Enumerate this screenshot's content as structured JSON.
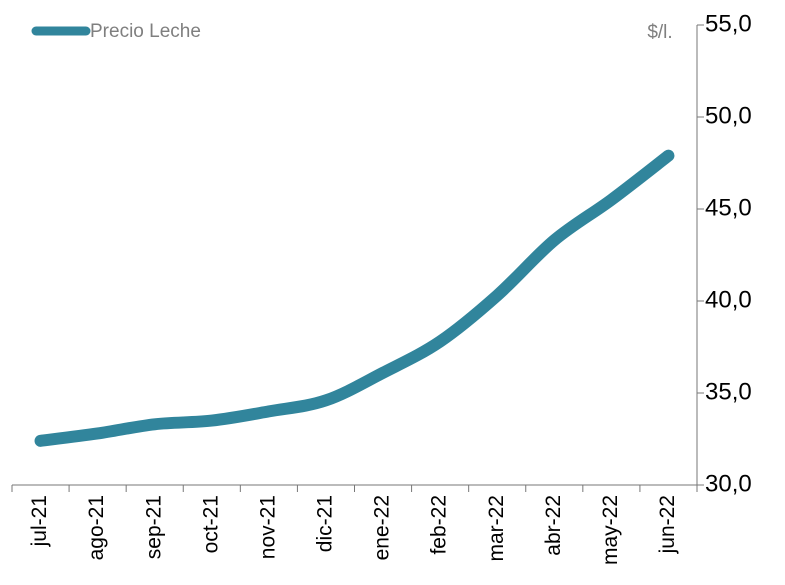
{
  "chart_data": {
    "type": "line",
    "categories": [
      "jul-21",
      "ago-21",
      "sep-21",
      "oct-21",
      "nov-21",
      "dic-21",
      "ene-22",
      "feb-22",
      "mar-22",
      "abr-22",
      "may-22",
      "jun-22"
    ],
    "series": [
      {
        "name": "Precio Leche",
        "color": "#31859c",
        "values": [
          32.4,
          32.8,
          33.3,
          33.5,
          34.0,
          34.6,
          36.1,
          37.8,
          40.3,
          43.3,
          45.5,
          47.9
        ]
      }
    ],
    "y_axis_label": "$/l.",
    "ylim": [
      30,
      55
    ],
    "yticks": [
      {
        "value": 30,
        "label": "30,0"
      },
      {
        "value": 35,
        "label": "35,0"
      },
      {
        "value": 40,
        "label": "40,0"
      },
      {
        "value": 45,
        "label": "45,0"
      },
      {
        "value": 50,
        "label": "50,0"
      },
      {
        "value": 55,
        "label": "55,0"
      }
    ],
    "legend": "top-left"
  }
}
